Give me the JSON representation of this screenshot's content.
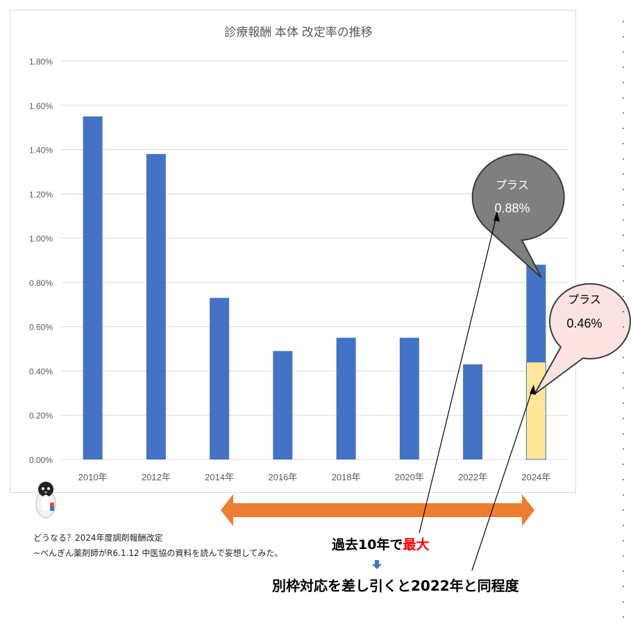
{
  "chart_data": {
    "type": "bar",
    "title": "診療報酬 本体 改定率の推移",
    "categories": [
      "2010年",
      "2012年",
      "2014年",
      "2016年",
      "2018年",
      "2020年",
      "2022年",
      "2024年"
    ],
    "series": [
      {
        "values": [
          1.55,
          1.38,
          0.73,
          0.49,
          0.55,
          0.55,
          0.43,
          0.44
        ]
      },
      {
        "values": [
          0,
          0,
          0,
          0,
          0,
          0,
          0,
          0.44
        ]
      }
    ],
    "yticks": [
      "0.00%",
      "0.20%",
      "0.40%",
      "0.60%",
      "0.80%",
      "1.00%",
      "1.20%",
      "1.40%",
      "1.60%",
      "1.80%"
    ],
    "ylim": [
      0,
      1.8
    ],
    "grid": true,
    "colors": {
      "bar": "#4472c4",
      "bar_stack_top": "#4472c4",
      "bar_stack_bottom": "#ffe699"
    }
  },
  "callouts": {
    "total": {
      "line1": "プラス",
      "line2": "0.88%",
      "fill": "#7f7f7f",
      "text_color": "#ffffff"
    },
    "special": {
      "line1": "プラス",
      "line2": "0.46%",
      "fill": "#fde2e2",
      "text_color": "#000000"
    }
  },
  "arrow": {
    "color": "#ed7d31"
  },
  "captions": {
    "max_prefix": "過去10年で",
    "max_emph": "最大",
    "max_emph_color": "#ff0000",
    "result": "別枠対応を差し引くと2022年と同程度"
  },
  "footnote": {
    "line1": "どうなる？2024年度調剤報酬改定",
    "line2": "~ぺんぎん薬剤師がR6.1.12 中医協の資料を読んで妄想してみた。"
  }
}
